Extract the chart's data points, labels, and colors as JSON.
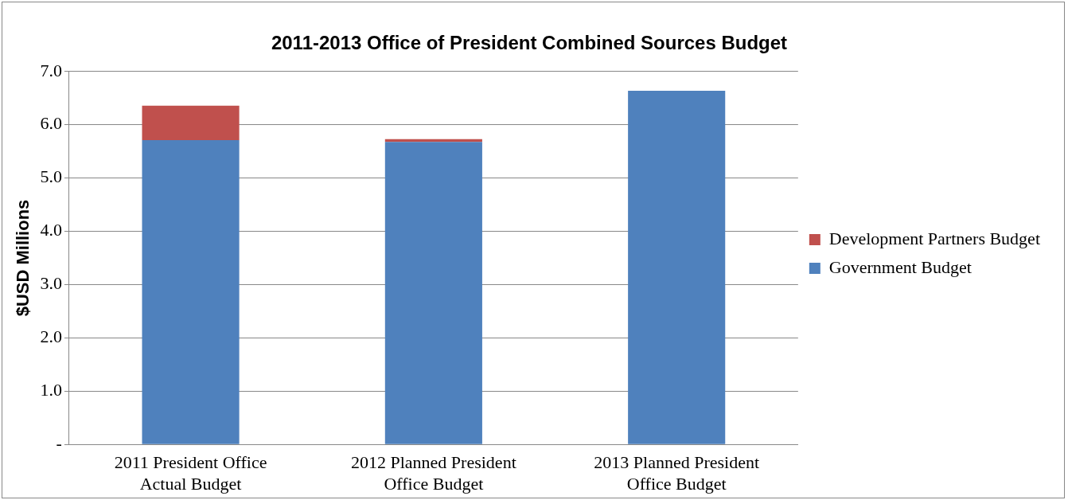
{
  "chart_data": {
    "type": "bar",
    "title": "2011-2013 Office of President Combined Sources Budget",
    "ylabel": "$USD Millions",
    "categories": [
      "2011 President Office Actual Budget",
      "2012 Planned President Office Budget",
      "2013 Planned President Office Budget"
    ],
    "stacked": true,
    "series": [
      {
        "name": "Government Budget",
        "color": "#4f81bd",
        "values": [
          5.71,
          5.68,
          6.64
        ]
      },
      {
        "name": "Development Partners Budget",
        "color": "#c0504d",
        "values": [
          0.65,
          0.05,
          null
        ]
      }
    ],
    "ylim": [
      0,
      7
    ],
    "yticks": [
      {
        "value": 0,
        "label": "-"
      },
      {
        "value": 1,
        "label": "1.0"
      },
      {
        "value": 2,
        "label": "2.0"
      },
      {
        "value": 3,
        "label": "3.0"
      },
      {
        "value": 4,
        "label": "4.0"
      },
      {
        "value": 5,
        "label": "5.0"
      },
      {
        "value": 6,
        "label": "6.0"
      },
      {
        "value": 7,
        "label": "7.0"
      }
    ],
    "grid": "y",
    "legend": "right"
  }
}
